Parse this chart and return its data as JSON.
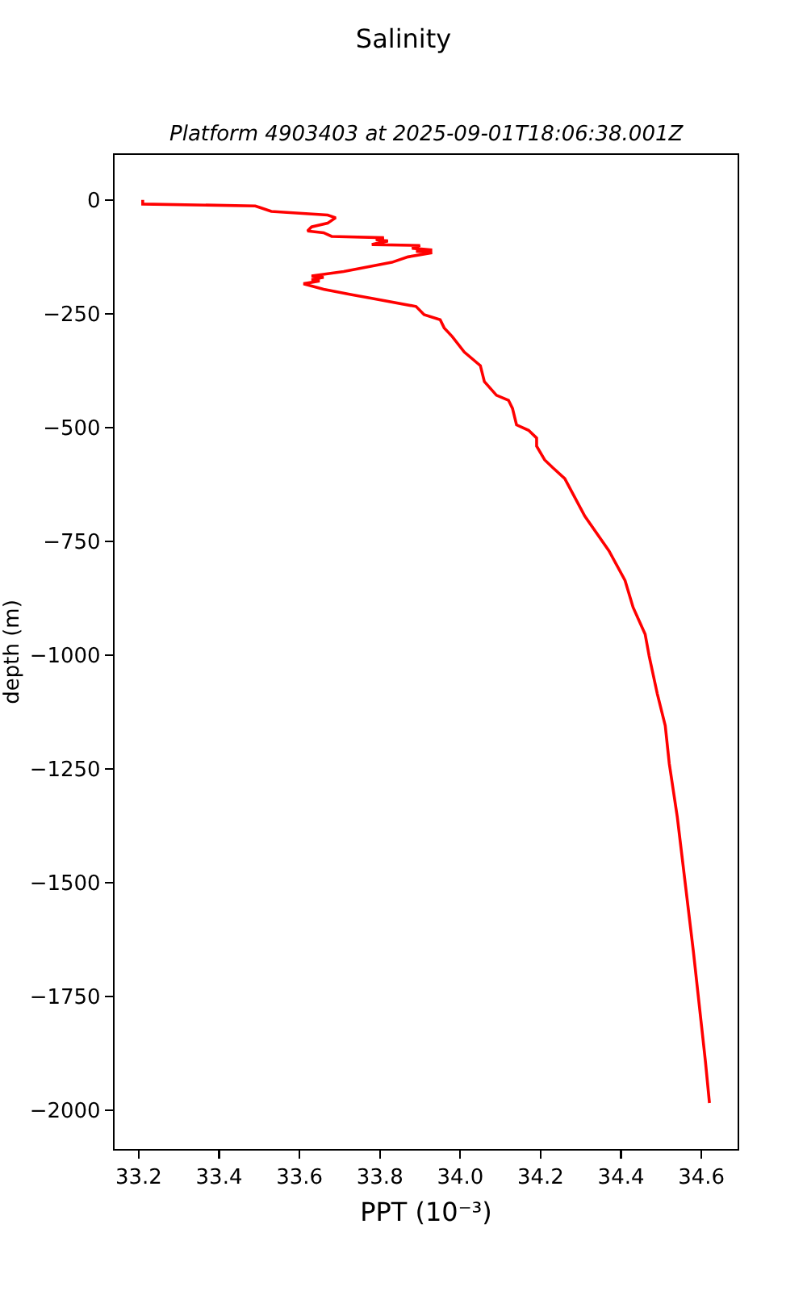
{
  "chart_data": {
    "type": "line",
    "title": "Salinity",
    "subtitle": "Platform 4903403 at 2025-09-01T18:06:38.001Z",
    "xlabel": "PPT (10⁻³)",
    "ylabel": "depth (m)",
    "series": [
      {
        "color": "#ff0000",
        "x": [
          33.21,
          33.21,
          33.49,
          33.53,
          33.67,
          33.69,
          33.67,
          33.63,
          33.62,
          33.66,
          33.68,
          33.81,
          33.79,
          33.82,
          33.78,
          33.9,
          33.88,
          33.93,
          33.89,
          33.93,
          33.87,
          33.83,
          33.71,
          33.63,
          33.66,
          33.63,
          33.65,
          33.61,
          33.66,
          33.73,
          33.78,
          33.89,
          33.91,
          33.95,
          33.96,
          33.98,
          34.01,
          34.05,
          34.06,
          34.09,
          34.12,
          34.13,
          34.14,
          34.17,
          34.19,
          34.19,
          34.21,
          34.23,
          34.26,
          34.31,
          34.37,
          34.41,
          34.43,
          34.46,
          34.47,
          34.49,
          34.51,
          34.52,
          34.54,
          34.58,
          34.61,
          34.62
        ],
        "values": [
          0,
          -9,
          -13,
          -25,
          -33,
          -39,
          -51,
          -59,
          -68,
          -72,
          -80,
          -83,
          -87,
          -90,
          -98,
          -100,
          -106,
          -110,
          -113,
          -116,
          -125,
          -137,
          -157,
          -167,
          -170,
          -175,
          -178,
          -184,
          -196,
          -208,
          -216,
          -234,
          -252,
          -263,
          -281,
          -300,
          -334,
          -364,
          -399,
          -429,
          -440,
          -458,
          -494,
          -506,
          -523,
          -541,
          -571,
          -588,
          -612,
          -695,
          -771,
          -836,
          -895,
          -954,
          -1002,
          -1084,
          -1155,
          -1238,
          -1356,
          -1651,
          -1893,
          -1984
        ]
      }
    ],
    "xlim": [
      33.14,
      34.69
    ],
    "xticks": [
      33.2,
      33.4,
      33.6,
      33.8,
      {
        "value": 34,
        "label": "34.0"
      },
      34.2,
      34.4,
      34.6
    ],
    "ylim": [
      -2085,
      99
    ],
    "yticks": [
      0,
      -250,
      -500,
      -750,
      -1000,
      -1250,
      -1500,
      -1750,
      -2000
    ]
  }
}
